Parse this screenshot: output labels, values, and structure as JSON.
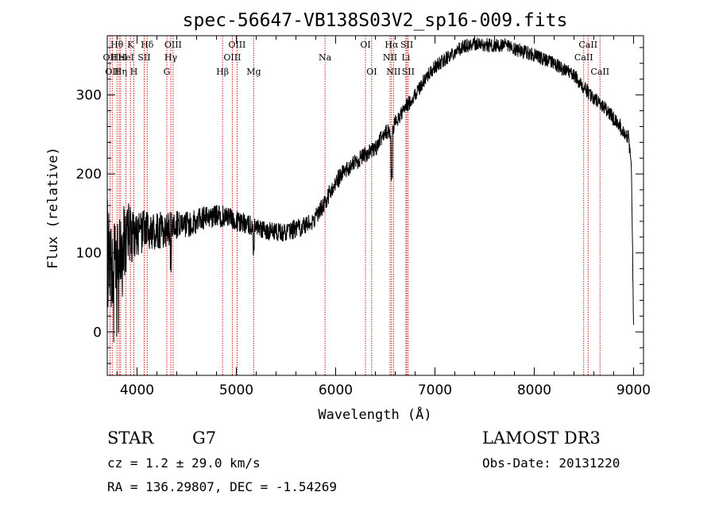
{
  "chart_data": {
    "type": "line",
    "title": "spec-56647-VB138S03V2_sp16-009.fits",
    "xlabel": "Wavelength (Å)",
    "ylabel": "Flux (relative)",
    "xlim": [
      3700,
      9100
    ],
    "ylim": [
      -55,
      375
    ],
    "x_ticks": [
      4000,
      5000,
      6000,
      7000,
      8000,
      9000
    ],
    "y_ticks": [
      0,
      100,
      200,
      300
    ],
    "x_tick_labels": [
      "4000",
      "5000",
      "6000",
      "7000",
      "8000",
      "9000"
    ],
    "y_tick_labels": [
      "0",
      "100",
      "200",
      "300"
    ],
    "series": [
      {
        "name": "flux",
        "color": "#000000",
        "x": [
          3700,
          3750,
          3800,
          3850,
          3900,
          3950,
          4000,
          4100,
          4200,
          4300,
          4400,
          4500,
          4600,
          4700,
          4800,
          4900,
          5000,
          5100,
          5200,
          5300,
          5400,
          5500,
          5600,
          5700,
          5800,
          5900,
          6000,
          6100,
          6200,
          6300,
          6400,
          6500,
          6560,
          6600,
          6700,
          6800,
          6900,
          7000,
          7100,
          7200,
          7300,
          7400,
          7500,
          7600,
          7700,
          7800,
          7900,
          8000,
          8100,
          8200,
          8300,
          8400,
          8500,
          8600,
          8700,
          8800,
          8900,
          8950,
          8980,
          9000
        ],
        "y": [
          110,
          80,
          95,
          110,
          120,
          120,
          125,
          130,
          128,
          130,
          133,
          136,
          140,
          145,
          148,
          145,
          140,
          137,
          133,
          128,
          126,
          127,
          130,
          135,
          145,
          165,
          190,
          205,
          215,
          225,
          232,
          255,
          250,
          265,
          283,
          300,
          320,
          335,
          345,
          355,
          362,
          365,
          363,
          362,
          362,
          358,
          355,
          350,
          345,
          340,
          332,
          325,
          310,
          295,
          285,
          270,
          255,
          245,
          200,
          0
        ],
        "noise": [
          60,
          60,
          55,
          50,
          45,
          40,
          32,
          26,
          24,
          22,
          20,
          18,
          16,
          15,
          15,
          14,
          14,
          13,
          12,
          12,
          12,
          12,
          12,
          12,
          12,
          12,
          12,
          11,
          11,
          11,
          10,
          10,
          10,
          10,
          10,
          9,
          9,
          9,
          9,
          9,
          9,
          9,
          9,
          9,
          9,
          9,
          9,
          9,
          9,
          9,
          9,
          9,
          9,
          9,
          9,
          10,
          10,
          10,
          10,
          10
        ]
      }
    ],
    "lines": [
      {
        "x": 3727,
        "label": "OII",
        "row": 2
      },
      {
        "x": 3750,
        "label": "OII",
        "row": 3
      },
      {
        "x": 3798,
        "label": "Hθ",
        "row": 1
      },
      {
        "x": 3820,
        "label": "HeI",
        "row": 2
      },
      {
        "x": 3835,
        "label": "Hη",
        "row": 3
      },
      {
        "x": 3889,
        "label": "HeI",
        "row": 2
      },
      {
        "x": 3934,
        "label": "K",
        "row": 1
      },
      {
        "x": 3968,
        "label": "H",
        "row": 3
      },
      {
        "x": 4072,
        "label": "SII",
        "row": 2
      },
      {
        "x": 4102,
        "label": "Hδ",
        "row": 1
      },
      {
        "x": 4300,
        "label": "G",
        "row": 3
      },
      {
        "x": 4340,
        "label": "Hγ",
        "row": 2
      },
      {
        "x": 4363,
        "label": "OIII",
        "row": 1
      },
      {
        "x": 4861,
        "label": "Hβ",
        "row": 3
      },
      {
        "x": 4959,
        "label": "OIII",
        "row": 2
      },
      {
        "x": 5007,
        "label": "OIII",
        "row": 1
      },
      {
        "x": 5175,
        "label": "Mg",
        "row": 3
      },
      {
        "x": 5893,
        "label": "Na",
        "row": 2
      },
      {
        "x": 6300,
        "label": "OI",
        "row": 1
      },
      {
        "x": 6363,
        "label": "OI",
        "row": 3
      },
      {
        "x": 6548,
        "label": "NII",
        "row": 2
      },
      {
        "x": 6563,
        "label": "Hα",
        "row": 1
      },
      {
        "x": 6583,
        "label": "NII",
        "row": 3
      },
      {
        "x": 6707,
        "label": "Li",
        "row": 2
      },
      {
        "x": 6717,
        "label": "SII",
        "row": 1
      },
      {
        "x": 6731,
        "label": "SII",
        "row": 3
      },
      {
        "x": 8498,
        "label": "CaII",
        "row": 2
      },
      {
        "x": 8542,
        "label": "CaII",
        "row": 1
      },
      {
        "x": 8662,
        "label": "CaII",
        "row": 3
      }
    ]
  },
  "info": {
    "class_label": "STAR",
    "subclass": "G7",
    "cz_text": "cz = 1.2 ± 29.0 km/s",
    "coords_text": "RA = 136.29807, DEC =  -1.54269",
    "survey": "LAMOST DR3",
    "obs_date_text": "Obs-Date: 20131220"
  },
  "colors": {
    "line_marker": "#cc0000",
    "spectrum": "#000000",
    "axes": "#000000",
    "background": "#ffffff"
  }
}
